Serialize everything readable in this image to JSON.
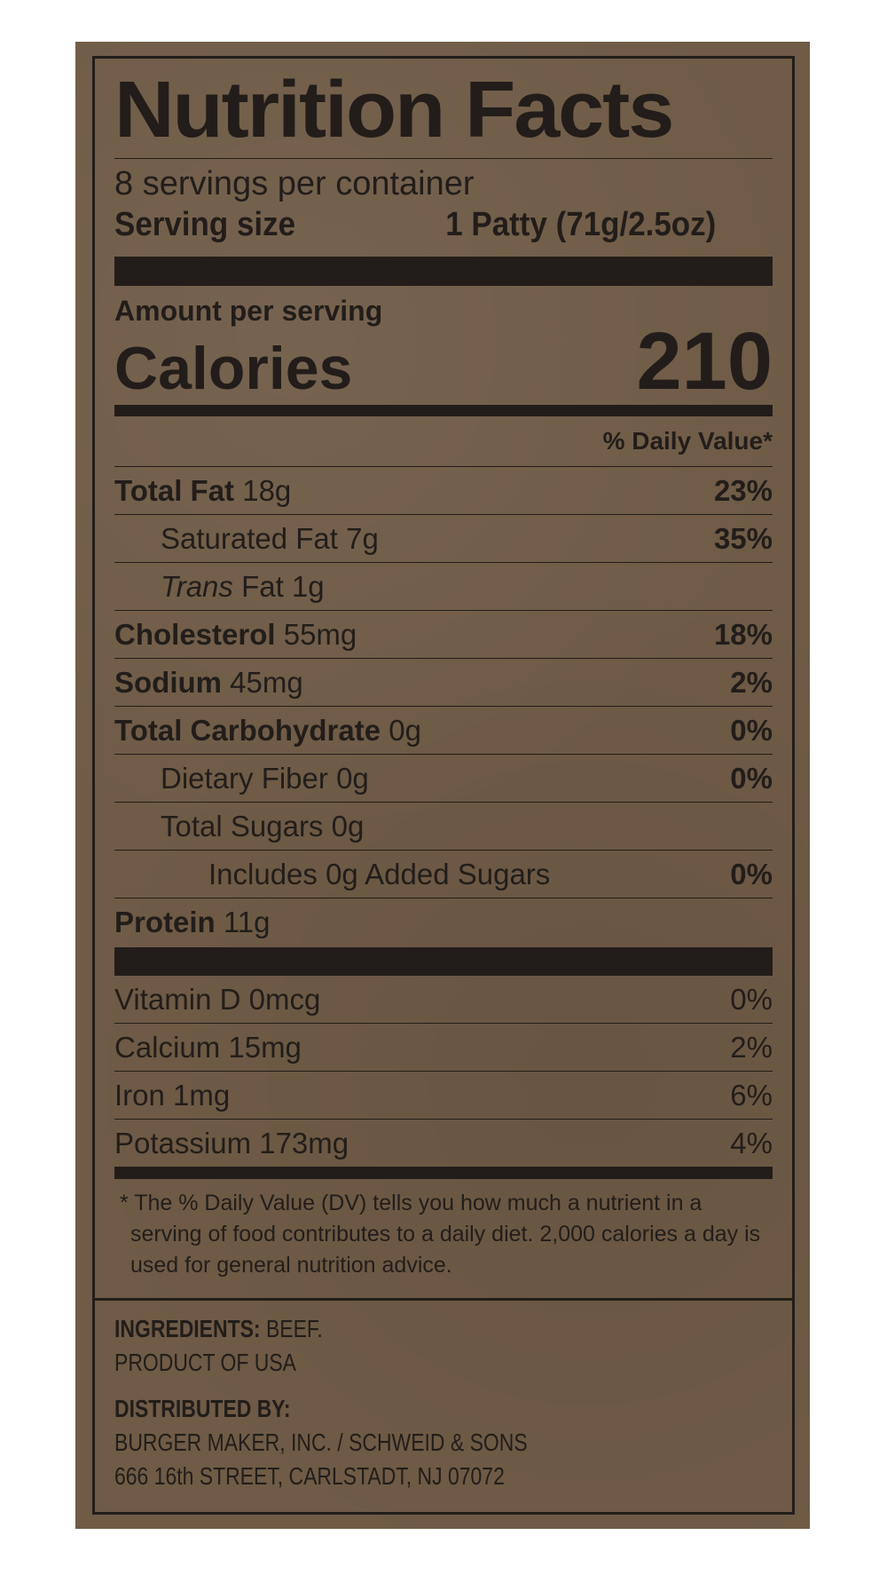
{
  "title": "Nutrition Facts",
  "servings_per_container": "8 servings per container",
  "serving_size_label": "Serving size",
  "serving_size_value": "1 Patty (71g/2.5oz)",
  "amount_per_serving": "Amount per serving",
  "calories_label": "Calories",
  "calories_value": "210",
  "daily_value_header": "% Daily Value*",
  "nutrients": [
    {
      "name": "Total Fat",
      "amount": "18g",
      "dv": "23%"
    },
    {
      "name": "Saturated Fat",
      "amount": "7g",
      "dv": "35%"
    },
    {
      "name": "Trans",
      "suffix": "Fat",
      "amount": "1g",
      "dv": ""
    },
    {
      "name": "Cholesterol",
      "amount": "55mg",
      "dv": "18%"
    },
    {
      "name": "Sodium",
      "amount": "45mg",
      "dv": "2%"
    },
    {
      "name": "Total Carbohydrate",
      "amount": "0g",
      "dv": "0%"
    },
    {
      "name": "Dietary Fiber",
      "amount": "0g",
      "dv": "0%"
    },
    {
      "name": "Total Sugars",
      "amount": "0g",
      "dv": ""
    },
    {
      "name": "Includes 0g Added Sugars",
      "amount": "",
      "dv": "0%"
    },
    {
      "name": "Protein",
      "amount": "11g",
      "dv": ""
    }
  ],
  "vitamins": [
    {
      "name": "Vitamin D 0mcg",
      "dv": "0%"
    },
    {
      "name": "Calcium 15mg",
      "dv": "2%"
    },
    {
      "name": "Iron 1mg",
      "dv": "6%"
    },
    {
      "name": "Potassium 173mg",
      "dv": "4%"
    }
  ],
  "footnote": "* The % Daily Value (DV) tells you how much a nutrient in a serving of food contributes to a daily diet. 2,000 calories a day is used for general nutrition advice.",
  "ingredients_label": "INGREDIENTS:",
  "ingredients_value": "BEEF.",
  "origin": "PRODUCT OF USA",
  "distributed_label": "DISTRIBUTED BY:",
  "distributor_name": "BURGER MAKER, INC. / SCHWEID & SONS",
  "distributor_address": "666 16th STREET, CARLSTADT, NJ 07072",
  "colors": {
    "background": "#6f5b46",
    "ink": "#221d1a"
  }
}
